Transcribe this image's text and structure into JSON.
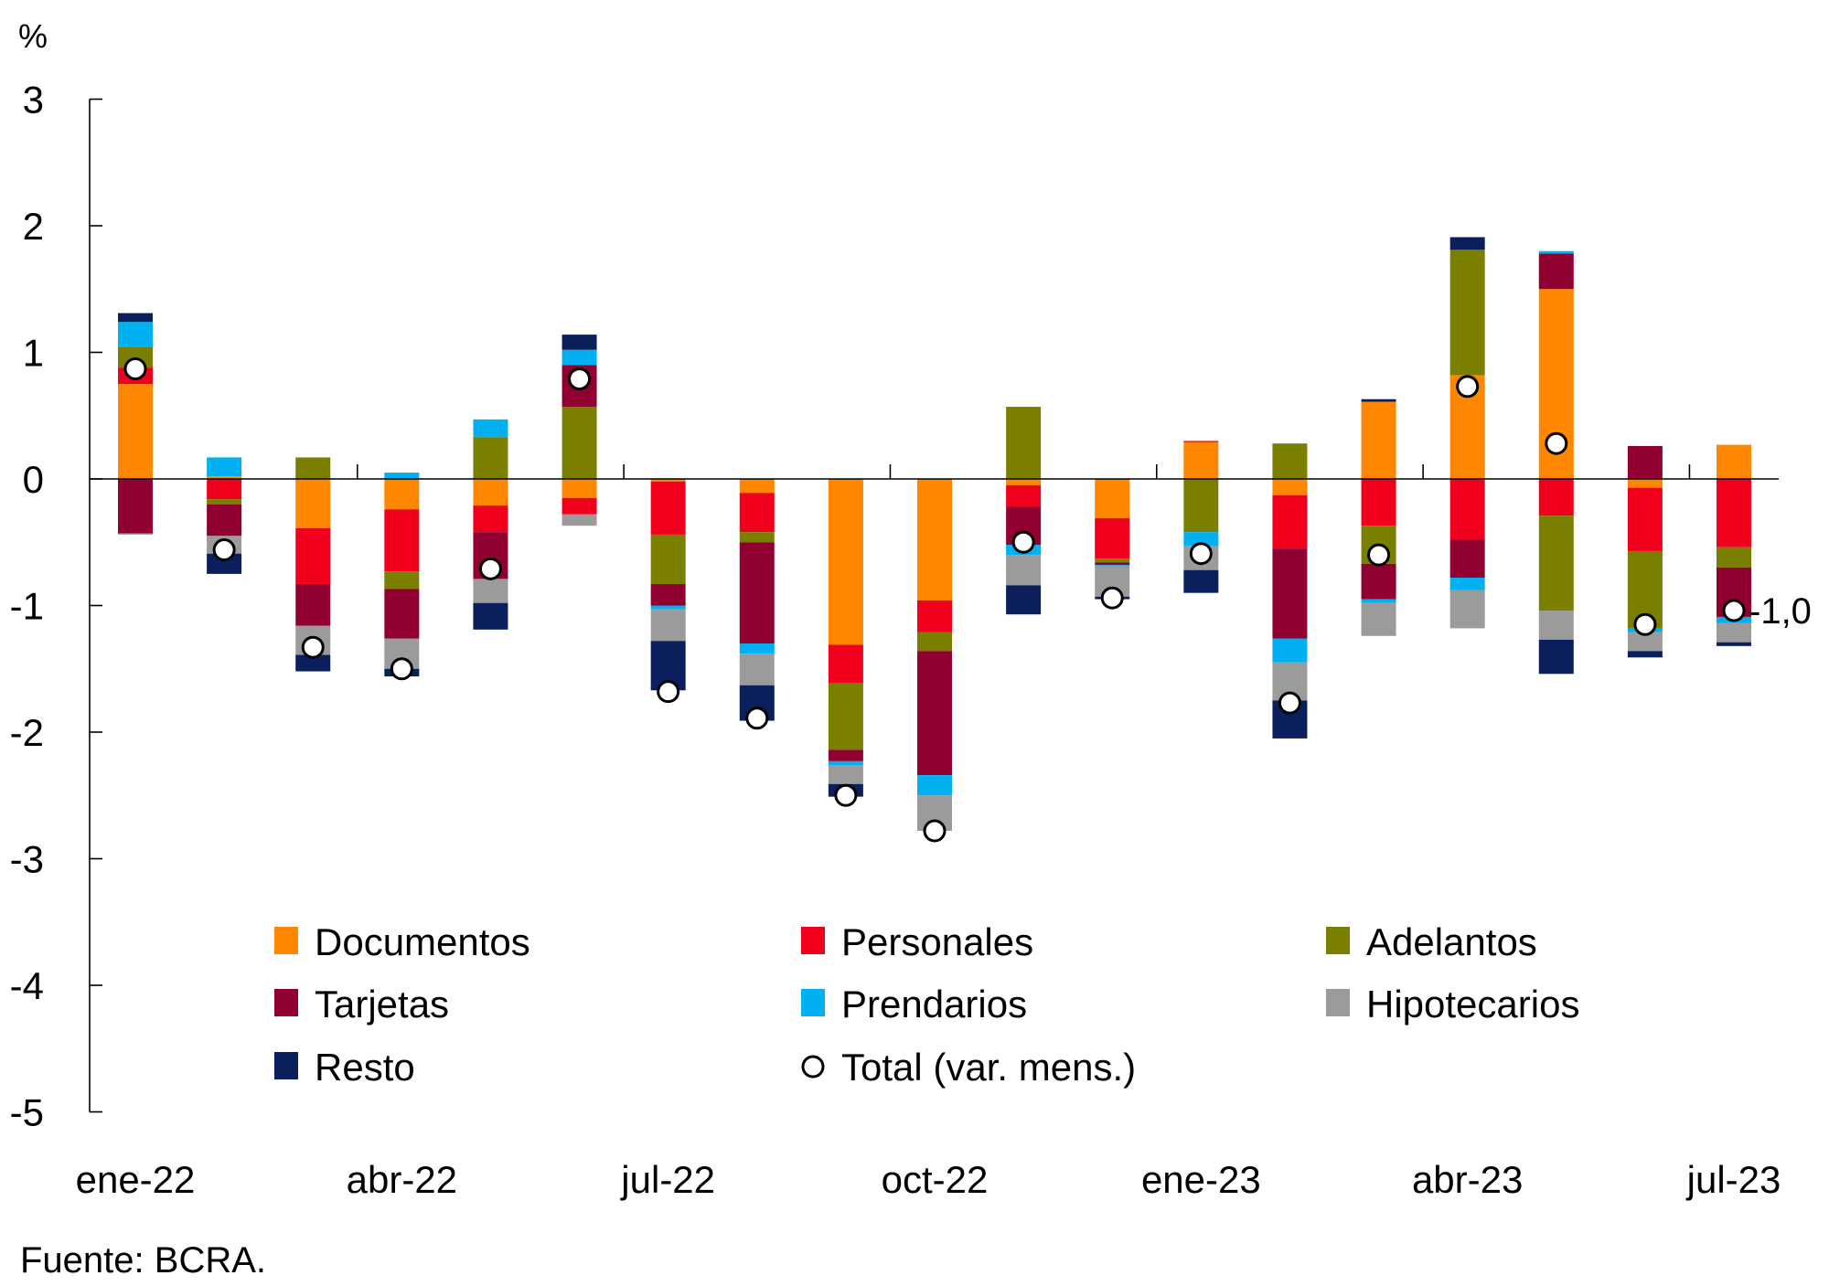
{
  "chart_data": {
    "type": "bar",
    "stacked": true,
    "title": "",
    "ylabel": "%",
    "xlabel": "",
    "ylim": [
      -5,
      3
    ],
    "yticks": [
      3,
      2,
      1,
      0,
      -1,
      -2,
      -3,
      -4,
      -5
    ],
    "categories": [
      "ene-22",
      "feb-22",
      "mar-22",
      "abr-22",
      "may-22",
      "jun-22",
      "jul-22",
      "ago-22",
      "sep-22",
      "oct-22",
      "nov-22",
      "dic-22",
      "ene-23",
      "feb-23",
      "mar-23",
      "abr-23",
      "may-23",
      "jun-23",
      "jul-23"
    ],
    "xtick_labels": [
      {
        "index": 0,
        "label": "ene-22"
      },
      {
        "index": 3,
        "label": "abr-22"
      },
      {
        "index": 6,
        "label": "jul-22"
      },
      {
        "index": 9,
        "label": "oct-22"
      },
      {
        "index": 12,
        "label": "ene-23"
      },
      {
        "index": 15,
        "label": "abr-23"
      },
      {
        "index": 18,
        "label": "jul-23"
      }
    ],
    "series": [
      {
        "name": "Documentos",
        "color": "#FF8700",
        "values": [
          0.75,
          0.02,
          -0.39,
          -0.24,
          -0.21,
          -0.15,
          -0.02,
          -0.11,
          -1.31,
          -0.96,
          -0.05,
          -0.31,
          0.29,
          -0.13,
          0.61,
          0.82,
          1.5,
          -0.07,
          0.27
        ]
      },
      {
        "name": "Personales",
        "color": "#F0001C",
        "values": [
          0.13,
          -0.16,
          -0.44,
          -0.49,
          -0.21,
          -0.13,
          -0.42,
          -0.31,
          -0.3,
          -0.25,
          -0.17,
          -0.32,
          0.01,
          -0.42,
          -0.37,
          -0.48,
          -0.29,
          -0.5,
          -0.54
        ]
      },
      {
        "name": "Adelantos",
        "color": "#7A7F00",
        "values": [
          0.16,
          -0.04,
          0.17,
          -0.14,
          0.33,
          0.57,
          -0.39,
          -0.08,
          -0.53,
          -0.15,
          0.57,
          -0.03,
          -0.42,
          0.28,
          -0.3,
          0.99,
          -0.75,
          -0.61,
          -0.16
        ]
      },
      {
        "name": "Tarjetas",
        "color": "#900030",
        "values": [
          -0.43,
          -0.25,
          -0.33,
          -0.39,
          -0.37,
          0.33,
          -0.17,
          -0.8,
          -0.09,
          -0.98,
          -0.3,
          -0.02,
          0.0,
          -0.71,
          -0.28,
          -0.3,
          0.28,
          0.26,
          -0.39
        ]
      },
      {
        "name": "Prendarios",
        "color": "#00B0F0",
        "values": [
          0.2,
          0.15,
          0.0,
          0.05,
          0.14,
          0.12,
          -0.03,
          -0.08,
          -0.03,
          -0.16,
          -0.08,
          -0.01,
          -0.11,
          -0.19,
          -0.03,
          -0.1,
          0.02,
          -0.03,
          -0.05
        ]
      },
      {
        "name": "Hipotecarios",
        "color": "#9B9B9B",
        "values": [
          -0.01,
          -0.14,
          -0.23,
          -0.24,
          -0.19,
          -0.09,
          -0.25,
          -0.25,
          -0.15,
          -0.28,
          -0.24,
          -0.24,
          -0.19,
          -0.3,
          -0.26,
          -0.3,
          -0.23,
          -0.15,
          -0.15
        ]
      },
      {
        "name": "Resto",
        "color": "#0A1F5C",
        "values": [
          0.07,
          -0.16,
          -0.13,
          -0.06,
          -0.21,
          0.12,
          -0.39,
          -0.28,
          -0.1,
          0.0,
          -0.23,
          -0.02,
          -0.18,
          -0.3,
          0.02,
          0.1,
          -0.27,
          -0.05,
          -0.03
        ]
      }
    ],
    "total_series": {
      "name": "Total (var. mens.)",
      "type": "scatter",
      "values": [
        0.87,
        -0.56,
        -1.33,
        -1.5,
        -0.71,
        0.79,
        -1.68,
        -1.89,
        -2.5,
        -2.78,
        -0.5,
        -0.94,
        -0.59,
        -1.77,
        -0.6,
        0.73,
        0.28,
        -1.15,
        -1.04
      ]
    },
    "annotations": [
      {
        "index": 18,
        "text": "-1,0"
      }
    ],
    "legend": {
      "placement": "bottom-center-inside",
      "columns": 3,
      "entries": [
        "Documentos",
        "Personales",
        "Adelantos",
        "Tarjetas",
        "Prendarios",
        "Hipotecarios",
        "Resto",
        "Total (var. mens.)"
      ]
    },
    "grid": false,
    "source": "Fuente: BCRA."
  }
}
